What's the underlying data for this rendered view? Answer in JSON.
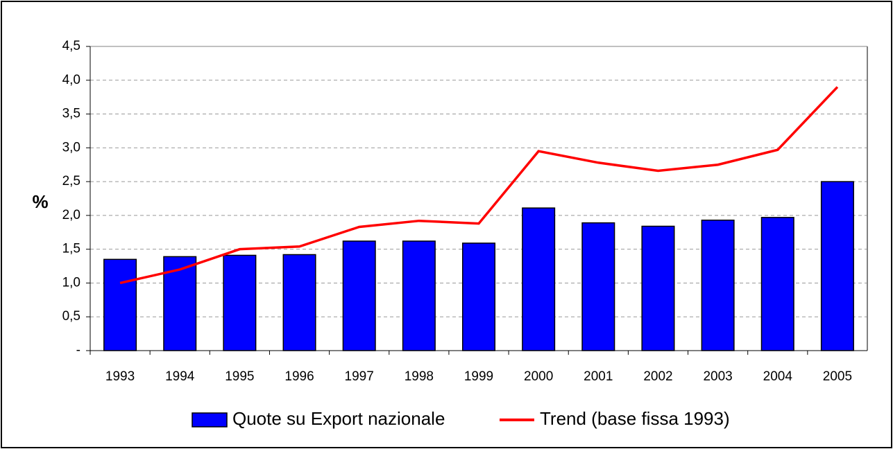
{
  "chart_data": {
    "type": "bar",
    "y_label": "%",
    "categories": [
      "1993",
      "1994",
      "1995",
      "1996",
      "1997",
      "1998",
      "1999",
      "2000",
      "2001",
      "2002",
      "2003",
      "2004",
      "2005"
    ],
    "series": [
      {
        "name": "Quote su Export nazionale",
        "type": "bar",
        "color": "#0000ff",
        "values": [
          1.35,
          1.39,
          1.41,
          1.42,
          1.62,
          1.62,
          1.59,
          2.11,
          1.89,
          1.84,
          1.93,
          1.97,
          2.5
        ]
      },
      {
        "name": "Trend (base fissa 1993)",
        "type": "line",
        "color": "#ff0000",
        "values": [
          1.0,
          1.2,
          1.5,
          1.54,
          1.83,
          1.92,
          1.88,
          2.95,
          2.78,
          2.66,
          2.75,
          2.97,
          3.9
        ]
      }
    ],
    "ylim": [
      0,
      4.5
    ],
    "yticks": [
      {
        "value": 0,
        "label": "-"
      },
      {
        "value": 0.5,
        "label": "0,5"
      },
      {
        "value": 1,
        "label": "1,0"
      },
      {
        "value": 1.5,
        "label": "1,5"
      },
      {
        "value": 2,
        "label": "2,0"
      },
      {
        "value": 2.5,
        "label": "2,5"
      },
      {
        "value": 3,
        "label": "3,0"
      },
      {
        "value": 3.5,
        "label": "3,5"
      },
      {
        "value": 4,
        "label": "4,0"
      },
      {
        "value": 4.5,
        "label": "4,5"
      }
    ],
    "grid": true,
    "legend": "bottom"
  }
}
